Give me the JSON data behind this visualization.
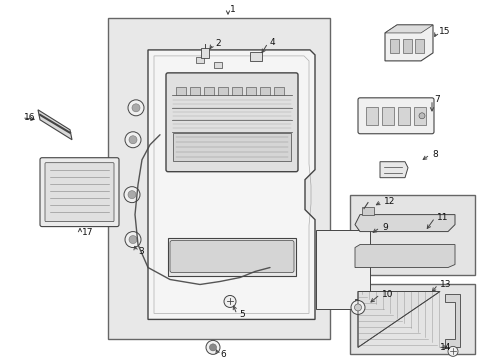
{
  "bg_color": "#ffffff",
  "dot_color": "#d0d0d0",
  "line_color": "#444444",
  "border_color": "#666666",
  "panel_bg": "#e8e8e8",
  "inset_bg": "#e4e4e4",
  "part_fill": "#f0f0f0",
  "part_fill2": "#d8d8d8",
  "label_color": "#111111",
  "figw": 4.9,
  "figh": 3.6,
  "dpi": 100
}
